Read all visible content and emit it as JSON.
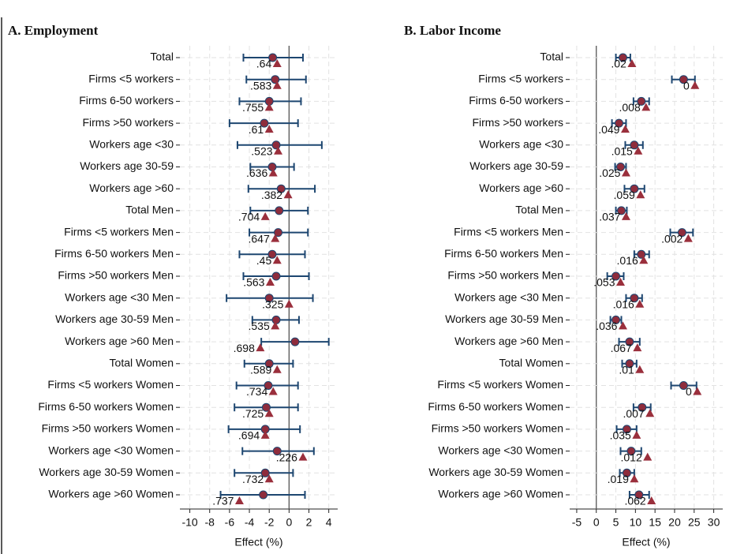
{
  "chart_data": [
    {
      "type": "dot-whisker",
      "title": "A. Employment",
      "xlabel": "Effect (%)",
      "categories": [
        "Total",
        "Firms <5 workers",
        "Firms 6-50 workers",
        "Firms >50 workers",
        "Workers age <30",
        "Workers age 30-59",
        "Workers age >60",
        "Total Men",
        "Firms <5 workers Men",
        "Firms 6-50 workers Men",
        "Firms >50 workers Men",
        "Workers age <30 Men",
        "Workers age 30-59 Men",
        "Workers age >60 Men",
        "Total Women",
        "Firms <5 workers Women",
        "Firms 6-50 workers Women",
        "Firms >50 workers Women",
        "Workers age <30 Women",
        "Workers age 30-59 Women",
        "Workers age >60 Women"
      ],
      "values": [
        -1.65,
        -1.4,
        -2.0,
        -2.5,
        -1.3,
        -1.7,
        -0.8,
        -1.0,
        -1.1,
        -1.7,
        -1.3,
        -2.0,
        -1.3,
        0.6,
        -2.0,
        -2.1,
        -2.3,
        -2.4,
        -1.2,
        -2.4,
        -2.6
      ],
      "ci_lower": [
        -4.6,
        -4.3,
        -5.0,
        -6.0,
        -5.2,
        -3.9,
        -4.1,
        -3.9,
        -4.0,
        -5.0,
        -4.6,
        -6.3,
        -3.7,
        -2.8,
        -4.5,
        -5.3,
        -5.5,
        -6.1,
        -4.7,
        -5.5,
        -6.9
      ],
      "ci_upper": [
        1.4,
        1.7,
        1.2,
        0.9,
        3.3,
        0.5,
        2.6,
        1.9,
        1.9,
        1.6,
        2.0,
        2.4,
        1.0,
        4.0,
        0.4,
        0.9,
        0.9,
        1.1,
        2.5,
        0.4,
        1.6
      ],
      "comparison": [
        -1.2,
        -1.2,
        -2.0,
        -2.0,
        -1.1,
        -1.6,
        -0.1,
        -2.4,
        -1.4,
        -1.2,
        -1.9,
        0,
        -1.4,
        -2.9,
        -1.2,
        -1.6,
        -2.0,
        -2.4,
        1.4,
        -2.0,
        -5.0
      ],
      "p_values": [
        0.64,
        0.583,
        0.755,
        0.61,
        0.523,
        0.636,
        0.382,
        0.704,
        0.647,
        0.45,
        0.563,
        0.325,
        0.535,
        0.698,
        0.589,
        0.734,
        0.725,
        0.694,
        0.226,
        0.732,
        0.737
      ],
      "p_value_labels": [
        ".64",
        ".583",
        ".755",
        ".61",
        ".523",
        ".636",
        ".382",
        ".704",
        ".647",
        ".45",
        ".563",
        ".325",
        ".535",
        ".698",
        ".589",
        ".734",
        ".725",
        ".694",
        ".226",
        ".732",
        ".737"
      ],
      "xlim": [
        -11,
        4.9
      ],
      "xticks": [
        -10,
        -8,
        -6,
        -4,
        -2,
        0,
        2,
        4
      ],
      "grid": true,
      "color": "#8e2c3c",
      "ci_color": "#1d4670",
      "comparison_color": "#9a2f3c",
      "label_color": "#2a8a3a"
    },
    {
      "type": "dot-whisker",
      "title": "B. Labor Income",
      "xlabel": "Effect (%)",
      "categories": [
        "Total",
        "Firms <5 workers",
        "Firms 6-50 workers",
        "Firms >50 workers",
        "Workers age <30",
        "Workers age 30-59",
        "Workers age >60",
        "Total Men",
        "Firms <5 workers Men",
        "Firms 6-50 workers Men",
        "Firms >50 workers Men",
        "Workers age <30 Men",
        "Workers age 30-59 Men",
        "Workers age >60 Men",
        "Total Women",
        "Firms <5 workers Women",
        "Firms 6-50 workers Women",
        "Firms >50 workers Women",
        "Workers age <30 Women",
        "Workers age 30-59 Women",
        "Workers age >60 Women"
      ],
      "values": [
        6.8,
        22.3,
        11.5,
        5.8,
        9.7,
        6.2,
        9.7,
        6.4,
        21.9,
        11.5,
        5.0,
        9.7,
        5.0,
        8.5,
        8.5,
        22.3,
        11.7,
        7.8,
        8.9,
        7.8,
        10.9
      ],
      "ci_lower": [
        5.0,
        19.3,
        9.5,
        4.0,
        7.4,
        4.8,
        7.2,
        5.0,
        18.9,
        9.7,
        2.8,
        7.6,
        3.6,
        5.8,
        6.6,
        19.1,
        9.5,
        5.2,
        6.2,
        6.0,
        8.5
      ],
      "ci_upper": [
        8.7,
        25.2,
        13.5,
        7.6,
        11.9,
        7.6,
        12.3,
        7.8,
        24.7,
        13.5,
        7.0,
        11.7,
        6.4,
        11.1,
        10.3,
        25.6,
        13.9,
        10.3,
        11.5,
        9.7,
        13.5
      ],
      "comparison": [
        9.1,
        25.2,
        12.7,
        7.4,
        10.7,
        7.6,
        11.3,
        7.6,
        23.5,
        12.1,
        6.2,
        11.1,
        6.8,
        10.5,
        11.1,
        25.8,
        13.7,
        10.3,
        13.1,
        9.7,
        14.1
      ],
      "p_values": [
        0.02,
        0,
        0.008,
        0.049,
        0.015,
        0.025,
        0.059,
        0.037,
        0.002,
        0.016,
        0.053,
        0.016,
        0.036,
        0.067,
        0.01,
        0,
        0.007,
        0.035,
        0.012,
        0.019,
        0.062
      ],
      "p_value_labels": [
        ".02",
        "0",
        ".008",
        ".049",
        ".015",
        ".025",
        ".059",
        ".037",
        ".002",
        ".016",
        ".053",
        ".016",
        ".036",
        ".067",
        ".01",
        "0",
        ".007",
        ".035",
        ".012",
        ".019",
        ".062"
      ],
      "xlim": [
        -6.8,
        32.3
      ],
      "xticks": [
        -5,
        0,
        5,
        10,
        15,
        20,
        25,
        30
      ],
      "grid": true,
      "color": "#8e2c3c",
      "ci_color": "#1d4670",
      "comparison_color": "#9a2f3c",
      "label_color": "#2a8a3a"
    }
  ]
}
